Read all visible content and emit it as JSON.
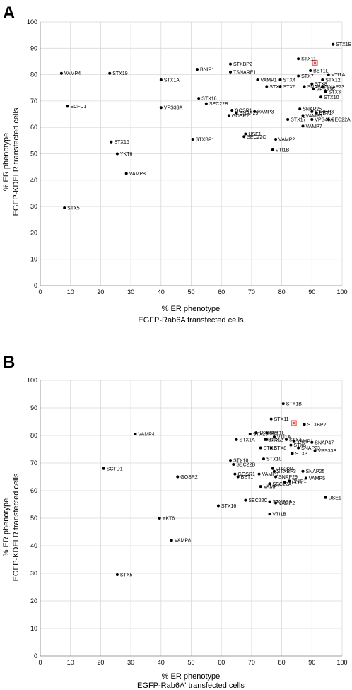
{
  "chart_data": [
    {
      "type": "scatter",
      "panel_label": "A",
      "xlabel_lines": [
        "% ER phenotype",
        "EGFP-Rab6A transfected cells"
      ],
      "ylabel_lines": [
        "% ER phenotype",
        "EGFP-KDELR transfected cells"
      ],
      "xlim": [
        0,
        100
      ],
      "ylim": [
        0,
        100
      ],
      "xticks": [
        "0",
        "10",
        "20",
        "30",
        "40",
        "50",
        "60",
        "70",
        "80",
        "90",
        "100"
      ],
      "yticks": [
        "0",
        "10",
        "20",
        "30",
        "40",
        "50",
        "60",
        "70",
        "80",
        "90",
        "100"
      ],
      "grid": true,
      "highlight": {
        "x": 91,
        "y": 84.5,
        "color": "#e05050"
      },
      "points": [
        {
          "label": "STX1B",
          "x": 97,
          "y": 91.5
        },
        {
          "label": "STXBP2",
          "x": 63,
          "y": 84
        },
        {
          "label": "STX11",
          "x": 85.5,
          "y": 86
        },
        {
          "label": "TSNARE1",
          "x": 63,
          "y": 81
        },
        {
          "label": "BET1L",
          "x": 89.5,
          "y": 81.5
        },
        {
          "label": "STX7",
          "x": 85.5,
          "y": 79.5
        },
        {
          "label": "VTI1A",
          "x": 95.5,
          "y": 80
        },
        {
          "label": "VAMP4",
          "x": 7,
          "y": 80.5
        },
        {
          "label": "STX19",
          "x": 23,
          "y": 80.5
        },
        {
          "label": "BNIP1",
          "x": 52,
          "y": 82
        },
        {
          "label": "STX1A",
          "x": 40,
          "y": 78
        },
        {
          "label": "VAMP1",
          "x": 72,
          "y": 78
        },
        {
          "label": "STX4",
          "x": 79.5,
          "y": 78
        },
        {
          "label": "STX12",
          "x": 93.5,
          "y": 78
        },
        {
          "label": "STX8",
          "x": 90,
          "y": 76.5
        },
        {
          "label": "STX2",
          "x": 75,
          "y": 75.5
        },
        {
          "label": "STX6",
          "x": 79.5,
          "y": 75.5
        },
        {
          "label": "SNAP47",
          "x": 87.5,
          "y": 75.5
        },
        {
          "label": "SNAP23",
          "x": 93.5,
          "y": 75.5
        },
        {
          "label": "VPS33B",
          "x": 90.5,
          "y": 74.5
        },
        {
          "label": "STX3",
          "x": 94.5,
          "y": 73.5
        },
        {
          "label": "STX18",
          "x": 52.5,
          "y": 71
        },
        {
          "label": "STX10",
          "x": 93,
          "y": 71.5
        },
        {
          "label": "SEC22B",
          "x": 55,
          "y": 69
        },
        {
          "label": "SCFD1",
          "x": 9,
          "y": 68
        },
        {
          "label": "VPS33A",
          "x": 40,
          "y": 67.5
        },
        {
          "label": "GOSR1",
          "x": 63.5,
          "y": 66.5
        },
        {
          "label": "SNAP25",
          "x": 86,
          "y": 67
        },
        {
          "label": "STXBP3",
          "x": 90,
          "y": 66
        },
        {
          "label": "VAMP3",
          "x": 71,
          "y": 66
        },
        {
          "label": "BET1",
          "x": 91.5,
          "y": 65.5
        },
        {
          "label": "SNAP29",
          "x": 65,
          "y": 65.5
        },
        {
          "label": "GOSR2",
          "x": 62.5,
          "y": 64.5
        },
        {
          "label": "VAMP5",
          "x": 87,
          "y": 64.5
        },
        {
          "label": "STX17",
          "x": 82,
          "y": 63
        },
        {
          "label": "VPS45A",
          "x": 90,
          "y": 63
        },
        {
          "label": "SEC22A",
          "x": 95.5,
          "y": 63
        },
        {
          "label": "VAMP7",
          "x": 87,
          "y": 60.5
        },
        {
          "label": "USE1",
          "x": 68,
          "y": 57.5
        },
        {
          "label": "SEC22C",
          "x": 67.5,
          "y": 56.5
        },
        {
          "label": "VAMP2",
          "x": 78,
          "y": 55.5
        },
        {
          "label": "STXBP1",
          "x": 50.5,
          "y": 55.5
        },
        {
          "label": "VTI1B",
          "x": 77,
          "y": 51.5
        },
        {
          "label": "STX16",
          "x": 23.5,
          "y": 54.5
        },
        {
          "label": "YKT6",
          "x": 25.5,
          "y": 50
        },
        {
          "label": "VAMP8",
          "x": 28.5,
          "y": 42.5
        },
        {
          "label": "STX5",
          "x": 8,
          "y": 29.5
        }
      ]
    },
    {
      "type": "scatter",
      "panel_label": "B",
      "xlabel_lines": [
        "% ER phenotype",
        "EGFP-Rab6A' transfected cells"
      ],
      "ylabel_lines": [
        "% ER phenotype",
        "EGFP-KDELR transfected cells"
      ],
      "xlim": [
        0,
        100
      ],
      "ylim": [
        0,
        100
      ],
      "xticks": [
        "0",
        "10",
        "20",
        "30",
        "40",
        "50",
        "60",
        "70",
        "80",
        "90",
        "100"
      ],
      "yticks": [
        "0",
        "10",
        "20",
        "30",
        "40",
        "50",
        "60",
        "70",
        "80",
        "90",
        "100"
      ],
      "grid": true,
      "highlight": {
        "x": 84,
        "y": 84.5,
        "color": "#e05050"
      },
      "points": [
        {
          "label": "STX1B",
          "x": 80.5,
          "y": 91.5
        },
        {
          "label": "STXBP2",
          "x": 87.5,
          "y": 84
        },
        {
          "label": "STX11",
          "x": 76.5,
          "y": 86
        },
        {
          "label": "TSNARE1",
          "x": 71.5,
          "y": 81
        },
        {
          "label": "BET1L",
          "x": 75,
          "y": 81
        },
        {
          "label": "STX19",
          "x": 69.5,
          "y": 80.5
        },
        {
          "label": "VAMP4",
          "x": 31.5,
          "y": 80.5
        },
        {
          "label": "VTI1A",
          "x": 77.5,
          "y": 79.5
        },
        {
          "label": "STX12",
          "x": 74.5,
          "y": 78.5
        },
        {
          "label": "STX4",
          "x": 81.5,
          "y": 78.5
        },
        {
          "label": "STX1A",
          "x": 65,
          "y": 78.5
        },
        {
          "label": "STX7",
          "x": 75,
          "y": 78.5
        },
        {
          "label": "VAMP1",
          "x": 84,
          "y": 78
        },
        {
          "label": "SNAP47",
          "x": 90,
          "y": 77.5
        },
        {
          "label": "STX6",
          "x": 83,
          "y": 76.5
        },
        {
          "label": "SNAP23",
          "x": 85.5,
          "y": 75.5
        },
        {
          "label": "STX2",
          "x": 73,
          "y": 75.5
        },
        {
          "label": "STX8",
          "x": 76.5,
          "y": 75.5
        },
        {
          "label": "VPS33B",
          "x": 91,
          "y": 74.5
        },
        {
          "label": "STX3",
          "x": 83.5,
          "y": 73.5
        },
        {
          "label": "STX18",
          "x": 63,
          "y": 71
        },
        {
          "label": "STX10",
          "x": 74,
          "y": 71.5
        },
        {
          "label": "SEC22B",
          "x": 64,
          "y": 69.5
        },
        {
          "label": "SCFD1",
          "x": 21,
          "y": 68
        },
        {
          "label": "VPS33A",
          "x": 77,
          "y": 68
        },
        {
          "label": "STXBP3",
          "x": 77.5,
          "y": 67
        },
        {
          "label": "SNAP25",
          "x": 87,
          "y": 67
        },
        {
          "label": "GOSR1",
          "x": 64.5,
          "y": 66
        },
        {
          "label": "VAMP3",
          "x": 72.5,
          "y": 66
        },
        {
          "label": "BET1",
          "x": 65.5,
          "y": 65
        },
        {
          "label": "GOSR2",
          "x": 45.5,
          "y": 65
        },
        {
          "label": "SNAP29",
          "x": 78,
          "y": 65
        },
        {
          "label": "VAMP5",
          "x": 88,
          "y": 64.5
        },
        {
          "label": "BNIP1",
          "x": 82.5,
          "y": 63.5
        },
        {
          "label": "STX17",
          "x": 81,
          "y": 63
        },
        {
          "label": "SEC22A",
          "x": 76,
          "y": 62.5
        },
        {
          "label": "VAMP7",
          "x": 73,
          "y": 61.5
        },
        {
          "label": "USE1",
          "x": 94.5,
          "y": 57.5
        },
        {
          "label": "STXBP1",
          "x": 76,
          "y": 56
        },
        {
          "label": "VAMP2",
          "x": 78,
          "y": 55.5
        },
        {
          "label": "SEC22C",
          "x": 68,
          "y": 56.5
        },
        {
          "label": "STX16",
          "x": 59,
          "y": 54.5
        },
        {
          "label": "VTI1B",
          "x": 76,
          "y": 51.5
        },
        {
          "label": "YKT6",
          "x": 39.5,
          "y": 50
        },
        {
          "label": "VAMP8",
          "x": 43.5,
          "y": 42
        },
        {
          "label": "STX5",
          "x": 25.5,
          "y": 29.5
        }
      ]
    }
  ]
}
